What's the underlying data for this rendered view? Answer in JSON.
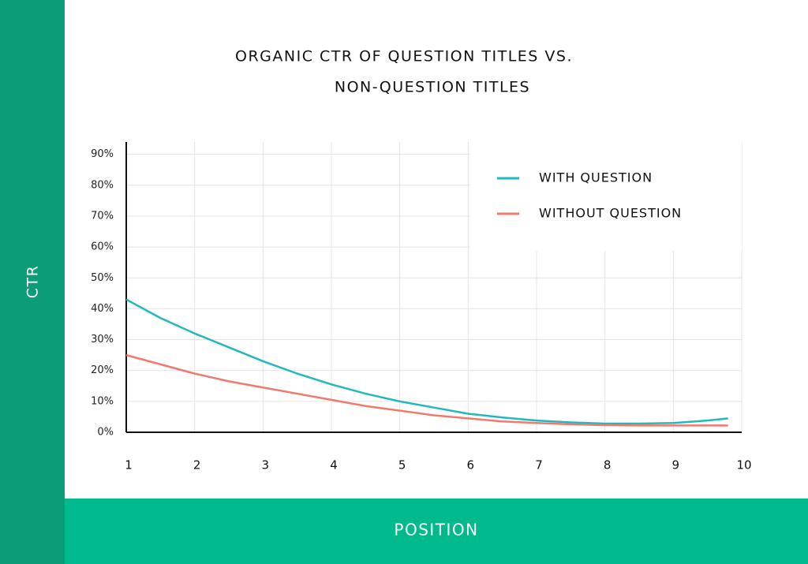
{
  "chart_data": {
    "type": "line",
    "title": [
      "ORGANIC CTR OF QUESTION TITLES VS.",
      "NON-QUESTION TITLES"
    ],
    "x_label": "POSITION",
    "y_label": "CTR",
    "xlim": [
      1,
      10
    ],
    "ylim": [
      0,
      94
    ],
    "xticks": [
      1,
      2,
      3,
      4,
      5,
      6,
      7,
      8,
      9,
      10
    ],
    "yticks": [
      {
        "value": 0,
        "label": "0%"
      },
      {
        "value": 10,
        "label": "10%"
      },
      {
        "value": 20,
        "label": "20%"
      },
      {
        "value": 30,
        "label": "30%"
      },
      {
        "value": 40,
        "label": "40%"
      },
      {
        "value": 50,
        "label": "50%"
      },
      {
        "value": 60,
        "label": "60%"
      },
      {
        "value": 70,
        "label": "70%"
      },
      {
        "value": 80,
        "label": "80%"
      },
      {
        "value": 90,
        "label": "90%"
      }
    ],
    "grid": true,
    "legend": "upper right",
    "series": [
      {
        "name": "WITH QUESTION",
        "color": "#22b8c0",
        "x": [
          1,
          1.5,
          2,
          2.5,
          3,
          3.5,
          4,
          4.5,
          5,
          5.5,
          6,
          6.5,
          7,
          7.5,
          8,
          8.5,
          9,
          9.5,
          9.8
        ],
        "values": [
          43,
          37,
          32,
          27.5,
          23,
          19,
          15.5,
          12.5,
          10,
          8,
          6,
          4.8,
          3.8,
          3.2,
          2.8,
          2.8,
          3,
          3.8,
          4.5
        ]
      },
      {
        "name": "WITHOUT QUESTION",
        "color": "#f07a6e",
        "x": [
          1,
          1.5,
          2,
          2.5,
          3,
          3.5,
          4,
          4.5,
          5,
          5.5,
          6,
          6.5,
          7,
          7.5,
          8,
          8.5,
          9,
          9.5,
          9.8
        ],
        "values": [
          25,
          22,
          19,
          16.5,
          14.5,
          12.5,
          10.5,
          8.5,
          7,
          5.5,
          4.5,
          3.5,
          3,
          2.6,
          2.3,
          2.2,
          2.2,
          2.2,
          2.2
        ]
      }
    ]
  }
}
